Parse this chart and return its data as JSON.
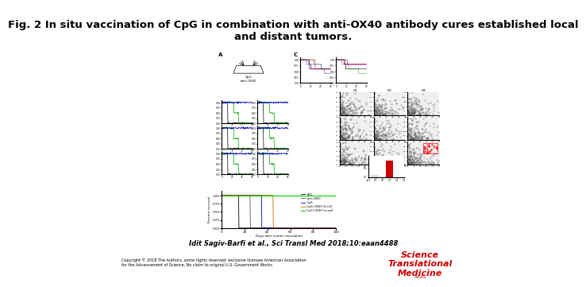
{
  "title_line1": "Fig. 2 In situ vaccination of CpG in combination with anti-OX40 antibody cures established local",
  "title_line2": "and distant tumors.",
  "title_fontsize": 9.5,
  "attribution": "Idit Sagiv-Barfi et al., Sci Transl Med 2018;10:eaan4488",
  "copyright_text": "Copyright © 2018 The Authors, some rights reserved; exclusive licensee American Association\nfor the Advancement of Science. No claim to original U.S. Government Works.",
  "bg_color": "#ffffff",
  "logo_lines": [
    "Science",
    "Translational",
    "Medicine"
  ],
  "logo_color": "#cc0000",
  "logo_fontsize": 8,
  "attr_fontsize": 6,
  "copy_fontsize": 3.5
}
